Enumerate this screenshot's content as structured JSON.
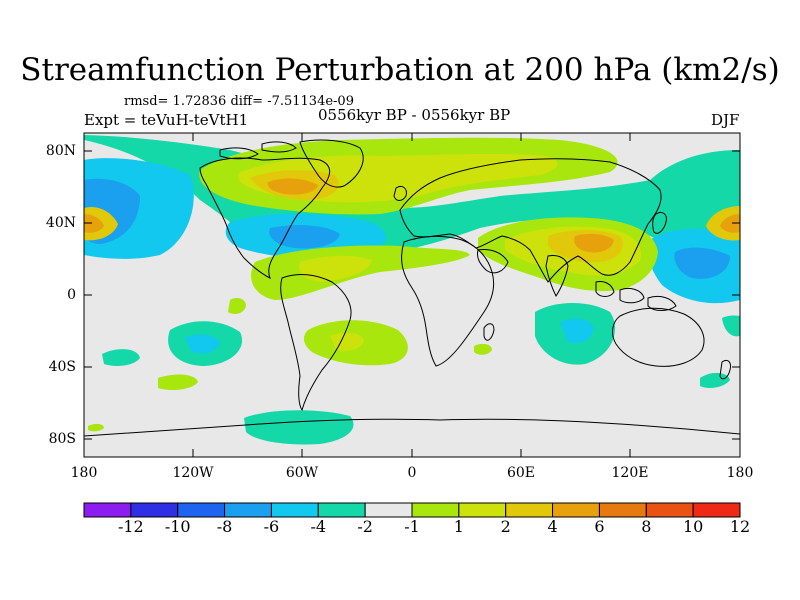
{
  "title": "Streamfunction Perturbation at 200 hPa (km2/s)",
  "rmsd_line": "rmsd= 1.72836  diff= -7.51134e-09",
  "experiment": "Expt = teVuH-teVtH1",
  "period": "0556kyr BP - 0556kyr BP",
  "season": "DJF",
  "lat_labels": [
    "80N",
    "40N",
    "0",
    "40S",
    "80S"
  ],
  "lon_labels": [
    "180",
    "120W",
    "60W",
    "0",
    "60E",
    "120E",
    "180"
  ],
  "colorbar": {
    "labels": [
      "-12",
      "-10",
      "-8",
      "-6",
      "-4",
      "-2",
      "-1",
      "1",
      "2",
      "4",
      "6",
      "8",
      "10",
      "12"
    ],
    "colors": [
      "#8c1cf0",
      "#2f2fe6",
      "#1e64f0",
      "#1aa0ee",
      "#12c8ee",
      "#14d8a8",
      "#e8e8e8",
      "#a8e60e",
      "#cce20a",
      "#e2c80a",
      "#e6a10c",
      "#e67a10",
      "#ea5214",
      "#ee2a16"
    ]
  },
  "map_palette": {
    "ocean_neutral": "#e8e8e8",
    "neg1": "#14d8a8",
    "neg2": "#12c8ee",
    "neg3": "#1aa0ee",
    "pos1": "#a8e60e",
    "pos2": "#cce20a",
    "pos3": "#e2c80a",
    "pos4": "#e6a10c"
  }
}
